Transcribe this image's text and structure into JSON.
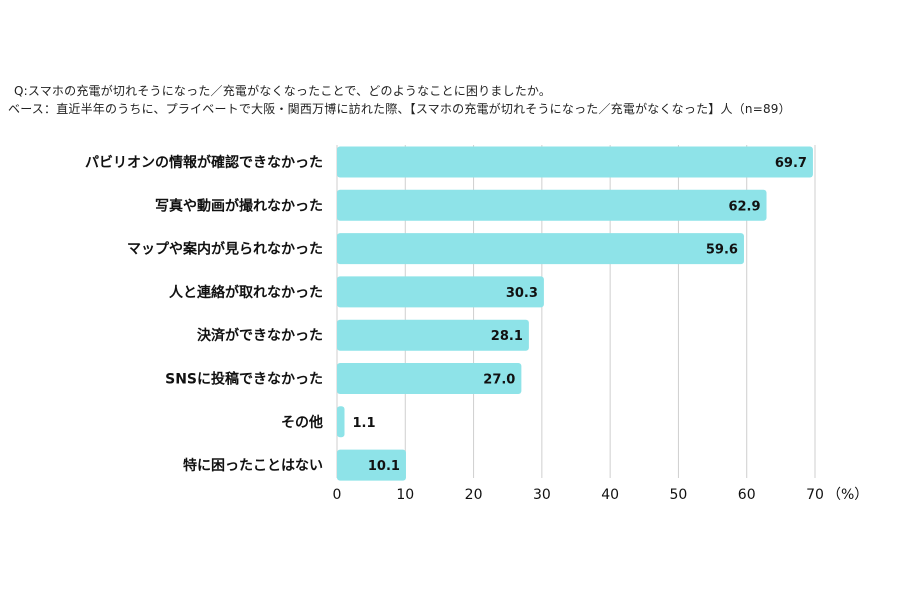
{
  "question": "Q:スマホの充電が切れそうになった／充電がなくなったことで、どのようなことに困りましたか。",
  "base": "ベース：直近半年のうちに、プライベートで大阪・関西万博に訪れた際、【スマホの充電が切れそうになった／充電がなくなった】人（n=89）",
  "chart_data": {
    "type": "bar",
    "orientation": "horizontal",
    "categories": [
      "パビリオンの情報が確認できなかった",
      "写真や動画が撮れなかった",
      "マップや案内が見られなかった",
      "人と連絡が取れなかった",
      "決済ができなかった",
      "SNSに投稿できなかった",
      "その他",
      "特に困ったことはない"
    ],
    "values": [
      69.7,
      62.9,
      59.6,
      30.3,
      28.1,
      27.0,
      1.1,
      10.1
    ],
    "value_labels": [
      "69.7",
      "62.9",
      "59.6",
      "30.3",
      "28.1",
      "27.0",
      "1.1",
      "10.1"
    ],
    "xlim": [
      0,
      70
    ],
    "xticks": [
      "0",
      "10",
      "20",
      "30",
      "40",
      "50",
      "60",
      "70"
    ],
    "unit": "（%）",
    "grid": true,
    "bar_color": "#8ee3e8",
    "grid_color": "#cfcfcf"
  }
}
